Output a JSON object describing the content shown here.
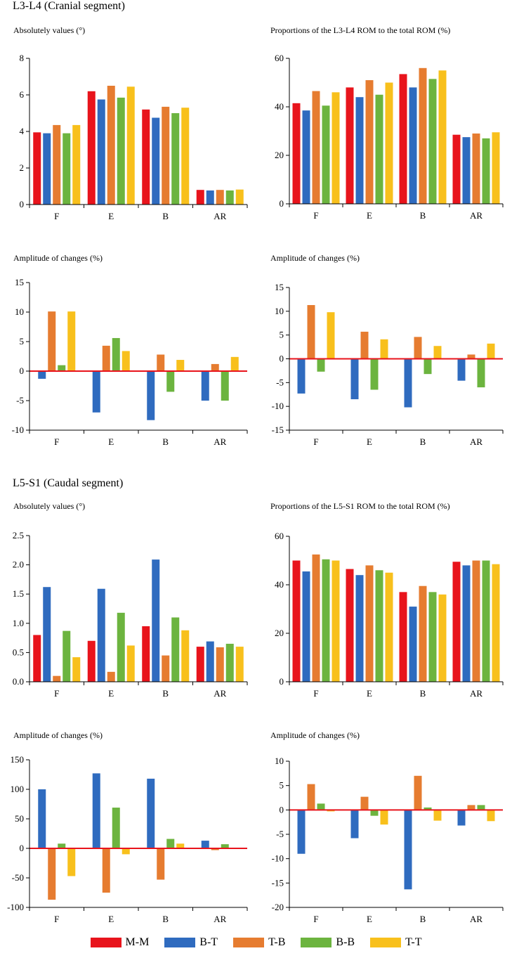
{
  "sections": [
    {
      "title": "L3-L4  (Cranial segment)"
    },
    {
      "title": "L5-S1  (Caudal segment)"
    }
  ],
  "legend": [
    {
      "label": "M-M",
      "color": "#e8141c"
    },
    {
      "label": "B-T",
      "color": "#2f6bbf"
    },
    {
      "label": "T-B",
      "color": "#e67c30"
    },
    {
      "label": "B-B",
      "color": "#6cb43f"
    },
    {
      "label": "T-T",
      "color": "#f8c01c"
    }
  ],
  "zero_line_color": "#e8141c",
  "chart_data": [
    {
      "id": "l3l4-abs",
      "type": "bar",
      "title": "Absolutely values (°)",
      "categories": [
        "F",
        "E",
        "B",
        "AR"
      ],
      "ylim": [
        0,
        8
      ],
      "yticks": [
        "0",
        "2",
        "4",
        "6",
        "8"
      ],
      "series": [
        {
          "name": "M-M",
          "values": [
            3.95,
            6.2,
            5.2,
            0.8
          ]
        },
        {
          "name": "B-T",
          "values": [
            3.9,
            5.75,
            4.75,
            0.77
          ]
        },
        {
          "name": "T-B",
          "values": [
            4.35,
            6.5,
            5.35,
            0.8
          ]
        },
        {
          "name": "B-B",
          "values": [
            3.9,
            5.85,
            5.0,
            0.77
          ]
        },
        {
          "name": "T-T",
          "values": [
            4.35,
            6.45,
            5.3,
            0.82
          ]
        }
      ]
    },
    {
      "id": "l3l4-prop",
      "type": "bar",
      "title": "Proportions of the L3-L4 ROM to the total ROM (%)",
      "categories": [
        "F",
        "E",
        "B",
        "AR"
      ],
      "ylim": [
        0,
        60
      ],
      "yticks": [
        "0",
        "20",
        "40",
        "60"
      ],
      "series": [
        {
          "name": "M-M",
          "values": [
            41.5,
            48.0,
            53.5,
            28.5
          ]
        },
        {
          "name": "B-T",
          "values": [
            38.5,
            44.0,
            48.0,
            27.5
          ]
        },
        {
          "name": "T-B",
          "values": [
            46.5,
            51.0,
            56.0,
            29.0
          ]
        },
        {
          "name": "B-B",
          "values": [
            40.5,
            45.0,
            51.5,
            27.0
          ]
        },
        {
          "name": "T-T",
          "values": [
            46.0,
            50.0,
            55.0,
            29.5
          ]
        }
      ]
    },
    {
      "id": "l3l4-amp-abs",
      "type": "bar",
      "title": "Amplitude of changes (%)",
      "categories": [
        "F",
        "E",
        "B",
        "AR"
      ],
      "ylim": [
        -10,
        15
      ],
      "yticks": [
        "-10",
        "-5",
        "0",
        "5",
        "10",
        "15"
      ],
      "zero_line": true,
      "series": [
        {
          "name": "B-T",
          "values": [
            -1.3,
            -7.0,
            -8.3,
            -5.0
          ]
        },
        {
          "name": "T-B",
          "values": [
            10.1,
            4.3,
            2.8,
            1.2
          ]
        },
        {
          "name": "B-B",
          "values": [
            1.0,
            5.6,
            -3.5,
            -5.0
          ]
        },
        {
          "name": "T-T",
          "values": [
            10.1,
            3.4,
            1.9,
            2.4
          ]
        }
      ]
    },
    {
      "id": "l3l4-amp-prop",
      "type": "bar",
      "title": "Amplitude of changes (%)",
      "categories": [
        "F",
        "E",
        "B",
        "AR"
      ],
      "ylim": [
        -15,
        15
      ],
      "yticks": [
        "-15",
        "-10",
        "-5",
        "0",
        "5",
        "10",
        "15"
      ],
      "zero_line": true,
      "series": [
        {
          "name": "B-T",
          "values": [
            -7.3,
            -8.5,
            -10.2,
            -4.6
          ]
        },
        {
          "name": "T-B",
          "values": [
            11.3,
            5.7,
            4.6,
            0.9
          ]
        },
        {
          "name": "B-B",
          "values": [
            -2.7,
            -6.5,
            -3.2,
            -6.0
          ]
        },
        {
          "name": "T-T",
          "values": [
            9.8,
            4.1,
            2.7,
            3.2
          ]
        }
      ]
    },
    {
      "id": "l5s1-abs",
      "type": "bar",
      "title": "Absolutely values (°)",
      "categories": [
        "F",
        "E",
        "B",
        "AR"
      ],
      "ylim": [
        0,
        2.5
      ],
      "yticks": [
        "0.0",
        "0.5",
        "1.0",
        "1.5",
        "2.0",
        "2.5"
      ],
      "series": [
        {
          "name": "M-M",
          "values": [
            0.8,
            0.7,
            0.95,
            0.6
          ]
        },
        {
          "name": "B-T",
          "values": [
            1.62,
            1.59,
            2.09,
            0.69
          ]
        },
        {
          "name": "T-B",
          "values": [
            0.1,
            0.17,
            0.45,
            0.59
          ]
        },
        {
          "name": "B-B",
          "values": [
            0.87,
            1.18,
            1.1,
            0.65
          ]
        },
        {
          "name": "T-T",
          "values": [
            0.42,
            0.62,
            0.88,
            0.6
          ]
        }
      ]
    },
    {
      "id": "l5s1-prop",
      "type": "bar",
      "title": "Proportions of the L5-S1 ROM to the total ROM (%)",
      "categories": [
        "F",
        "E",
        "B",
        "AR"
      ],
      "ylim": [
        0,
        60
      ],
      "yticks": [
        "0",
        "20",
        "40",
        "60"
      ],
      "series": [
        {
          "name": "M-M",
          "values": [
            50.0,
            46.5,
            37.0,
            49.5
          ]
        },
        {
          "name": "B-T",
          "values": [
            45.5,
            44.0,
            31.0,
            48.0
          ]
        },
        {
          "name": "T-B",
          "values": [
            52.5,
            48.0,
            39.5,
            50.0
          ]
        },
        {
          "name": "B-B",
          "values": [
            50.5,
            46.0,
            37.0,
            50.0
          ]
        },
        {
          "name": "T-T",
          "values": [
            50.0,
            45.0,
            36.0,
            48.5
          ]
        }
      ]
    },
    {
      "id": "l5s1-amp-abs",
      "type": "bar",
      "title": "Amplitude of changes (%)",
      "categories": [
        "F",
        "E",
        "B",
        "AR"
      ],
      "ylim": [
        -100,
        150
      ],
      "yticks": [
        "-100",
        "-50",
        "0",
        "50",
        "100",
        "150"
      ],
      "zero_line": true,
      "series": [
        {
          "name": "B-T",
          "values": [
            100,
            127,
            118,
            13
          ]
        },
        {
          "name": "T-B",
          "values": [
            -87,
            -75,
            -53,
            -3
          ]
        },
        {
          "name": "B-B",
          "values": [
            8,
            69,
            16,
            7
          ]
        },
        {
          "name": "T-T",
          "values": [
            -47,
            -10,
            8,
            0
          ]
        }
      ]
    },
    {
      "id": "l5s1-amp-prop",
      "type": "bar",
      "title": "Amplitude of changes (%)",
      "categories": [
        "F",
        "E",
        "B",
        "AR"
      ],
      "ylim": [
        -20,
        10
      ],
      "yticks": [
        "-20",
        "-15",
        "-10",
        "-5",
        "0",
        "5",
        "10"
      ],
      "zero_line": true,
      "series": [
        {
          "name": "B-T",
          "values": [
            -9.0,
            -5.8,
            -16.3,
            -3.2
          ]
        },
        {
          "name": "T-B",
          "values": [
            5.3,
            2.7,
            7.0,
            1.0
          ]
        },
        {
          "name": "B-B",
          "values": [
            1.3,
            -1.2,
            0.5,
            1.0
          ]
        },
        {
          "name": "T-T",
          "values": [
            -0.3,
            -3.0,
            -2.2,
            -2.3
          ]
        }
      ]
    }
  ]
}
